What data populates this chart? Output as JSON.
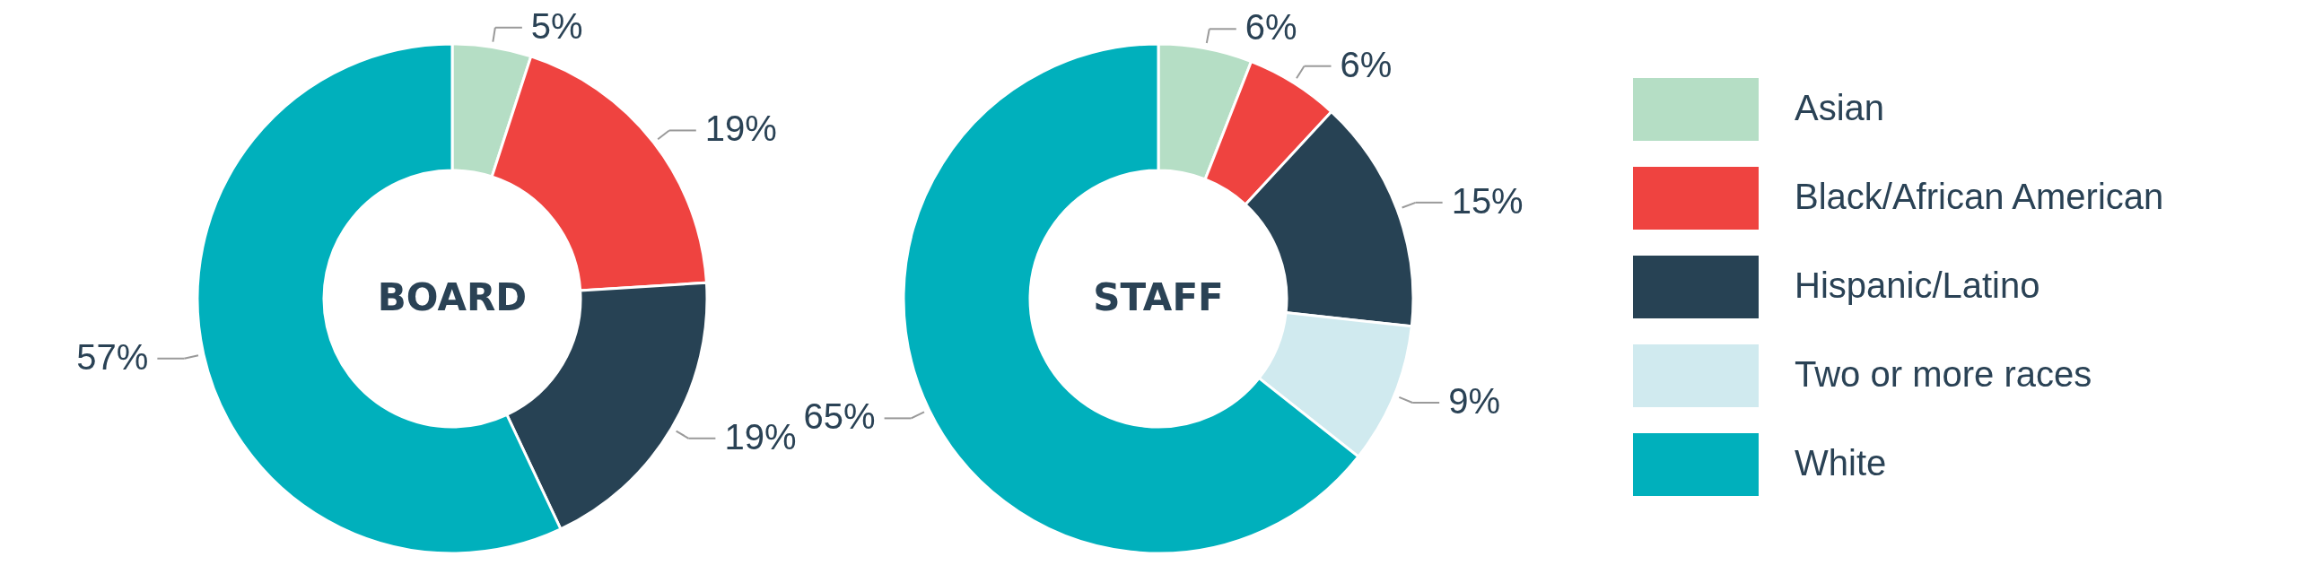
{
  "chart_data": {
    "type": "donut",
    "categories": [
      "Asian",
      "Black/African American",
      "Hispanic/Latino",
      "Two or more races",
      "White"
    ],
    "colors": [
      "#b5dec5",
      "#ef4340",
      "#274254",
      "#d0eaef",
      "#00b0bc"
    ],
    "legend": "right",
    "series": [
      {
        "name": "BOARD",
        "values": [
          5,
          19,
          19,
          null,
          57
        ],
        "value_labels": [
          "5%",
          "19%",
          "19%",
          null,
          "57%"
        ]
      },
      {
        "name": "STAFF",
        "values": [
          6,
          6,
          15,
          9,
          65
        ],
        "value_labels": [
          "6%",
          "6%",
          "15%",
          "9%",
          "65%"
        ]
      }
    ]
  }
}
